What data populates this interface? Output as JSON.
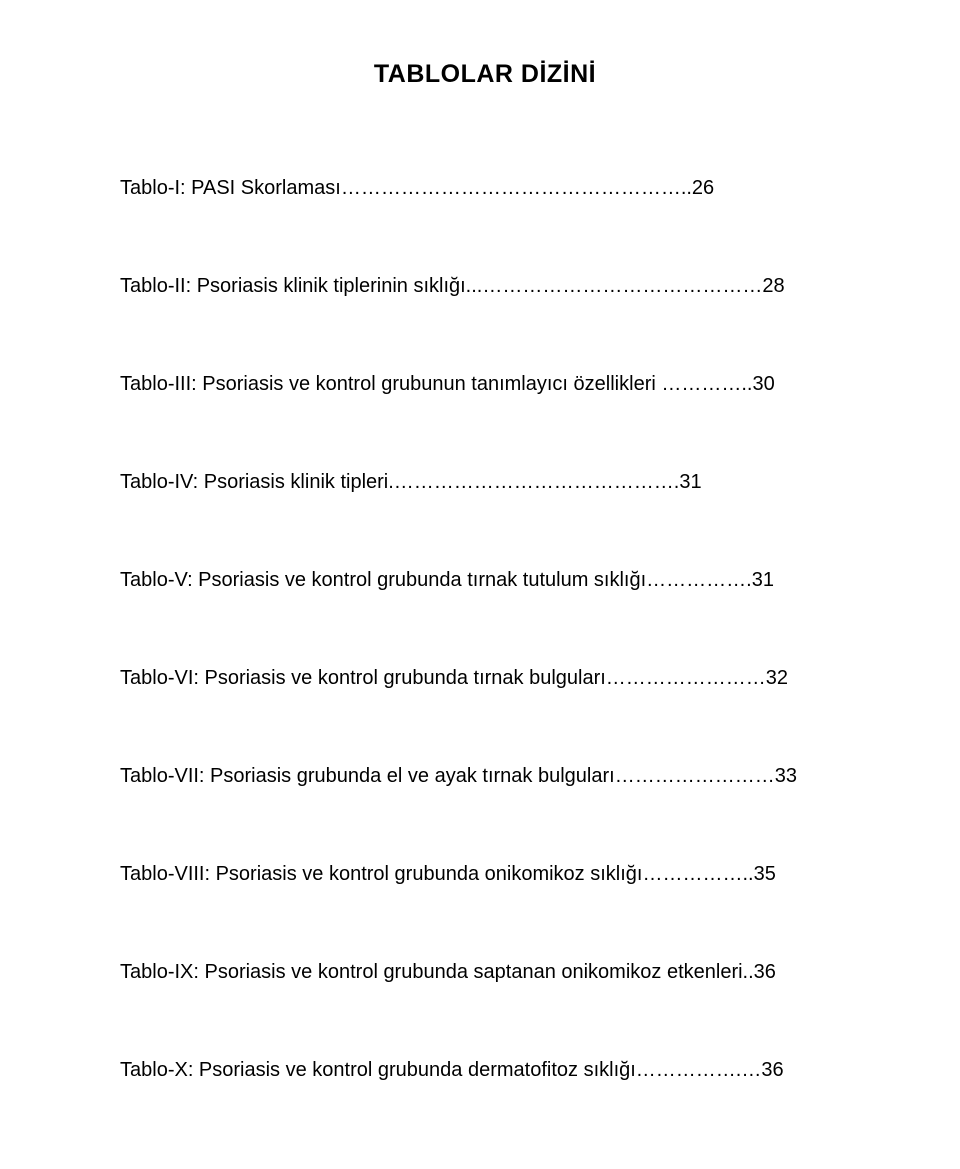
{
  "title": "TABLOLAR DİZİNİ",
  "entries": [
    "Tablo-I: PASI Skorlaması……………………………………………..26",
    "Tablo-II: Psoriasis klinik tiplerinin sıklığı...……………………………………28",
    "Tablo-III: Psoriasis ve kontrol grubunun tanımlayıcı özellikleri …………..30",
    "Tablo-IV: Psoriasis klinik tipleri.…………………………………….31",
    "Tablo-V: Psoriasis ve kontrol grubunda tırnak tutulum sıklığı…………….31",
    "Tablo-VI: Psoriasis ve kontrol grubunda tırnak bulguları……………………32",
    "Tablo-VII: Psoriasis grubunda el ve ayak tırnak bulguları……………………33",
    "Tablo-VIII: Psoriasis ve kontrol grubunda onikomikoz sıklığı……………..35",
    "Tablo-IX: Psoriasis ve kontrol grubunda saptanan onikomikoz etkenleri..36",
    "Tablo-X: Psoriasis ve kontrol grubunda dermatofitoz sıklığı…………….…36"
  ]
}
